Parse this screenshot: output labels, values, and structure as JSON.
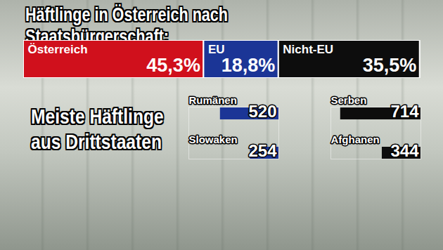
{
  "chart_data": [
    {
      "type": "bar",
      "title": "Häftlinge in Österreich nach Staatsbürgerschaft:",
      "orientation": "horizontal",
      "stacked": true,
      "data_labels": true,
      "tick_labels": false,
      "categories": [
        null
      ],
      "series": [
        {
          "name": "Österreich",
          "color": "#d0101c",
          "values": [
            45.3
          ],
          "value_labels": [
            "45,3%"
          ]
        },
        {
          "name": "EU",
          "color": "#1b3596",
          "values": [
            18.8
          ],
          "value_labels": [
            "18,8%"
          ]
        },
        {
          "name": "Nicht-EU",
          "color": "#0d0d0d",
          "values": [
            35.5
          ],
          "value_labels": [
            "35,5%"
          ]
        }
      ],
      "xlim": [
        0,
        100
      ],
      "xticks": []
    },
    {
      "type": "bar",
      "title": "Meiste Häftlinge\naus Drittstaaten",
      "orientation": "horizontal",
      "data_labels": true,
      "tick_labels": false,
      "categories": [
        "Rumänen",
        "Slowaken",
        "Serben",
        "Afghanen"
      ],
      "values": [
        520,
        254,
        714,
        344
      ],
      "colors": [
        "#1b3596",
        "#1b3596",
        "#0d0d0d",
        "#0d0d0d"
      ],
      "xlim": [
        0,
        800
      ],
      "xticks": []
    }
  ]
}
